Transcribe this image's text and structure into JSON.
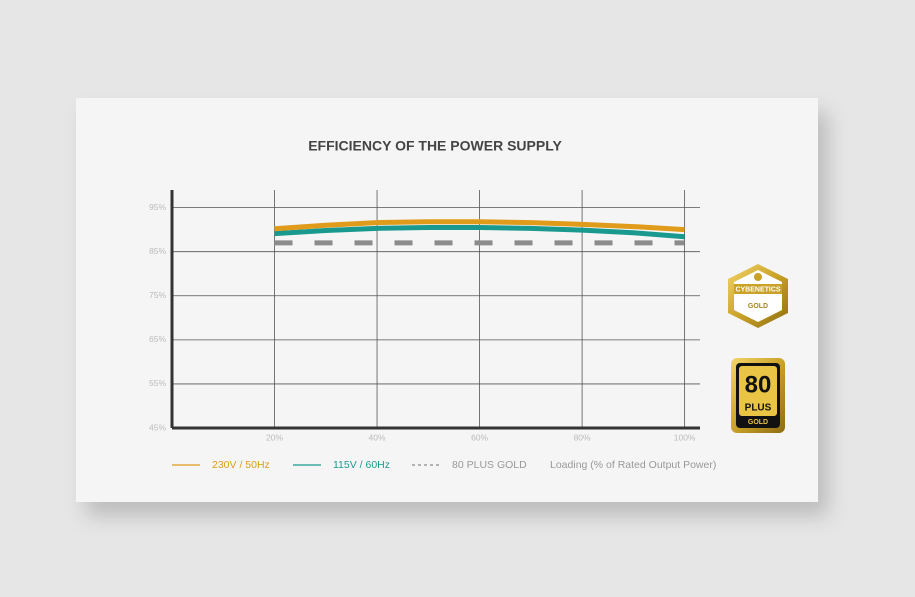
{
  "chart_data": {
    "type": "line",
    "title": "EFFICIENCY OF THE POWER SUPPLY",
    "x_label": "Loading (% of Rated Output Power)",
    "x": [
      20,
      30,
      40,
      50,
      60,
      70,
      80,
      90,
      100
    ],
    "series": [
      {
        "name": "230V / 50Hz",
        "color": "#e09b1a",
        "style": "solid",
        "values": [
          90.2,
          91.0,
          91.6,
          91.8,
          91.8,
          91.6,
          91.2,
          90.7,
          90.0
        ]
      },
      {
        "name": "115V / 60Hz",
        "color": "#1a9a8f",
        "style": "solid",
        "values": [
          89.1,
          89.8,
          90.3,
          90.5,
          90.5,
          90.3,
          89.9,
          89.3,
          88.4
        ]
      },
      {
        "name": "80 PLUS GOLD",
        "color": "#8c8c8c",
        "style": "dashed",
        "values": [
          87,
          87,
          87,
          87,
          87,
          87,
          87,
          87,
          87
        ]
      }
    ],
    "xlim": [
      0,
      103
    ],
    "ylim": [
      45,
      99
    ],
    "xticks": [
      {
        "value": 20,
        "label": "20%"
      },
      {
        "value": 40,
        "label": "40%"
      },
      {
        "value": 60,
        "label": "60%"
      },
      {
        "value": 80,
        "label": "80%"
      },
      {
        "value": 100,
        "label": "100%"
      }
    ],
    "yticks": [
      {
        "value": 45,
        "label": "45%"
      },
      {
        "value": 55,
        "label": "55%"
      },
      {
        "value": 65,
        "label": "65%"
      },
      {
        "value": 75,
        "label": "75%"
      },
      {
        "value": 85,
        "label": "85%"
      },
      {
        "value": 95,
        "label": "95%"
      }
    ],
    "grid": true
  },
  "badges": {
    "cybenetics": {
      "name": "CYBENETICS",
      "level": "GOLD"
    },
    "eighty_plus": {
      "number": "80",
      "name": "PLUS",
      "level": "GOLD"
    }
  }
}
